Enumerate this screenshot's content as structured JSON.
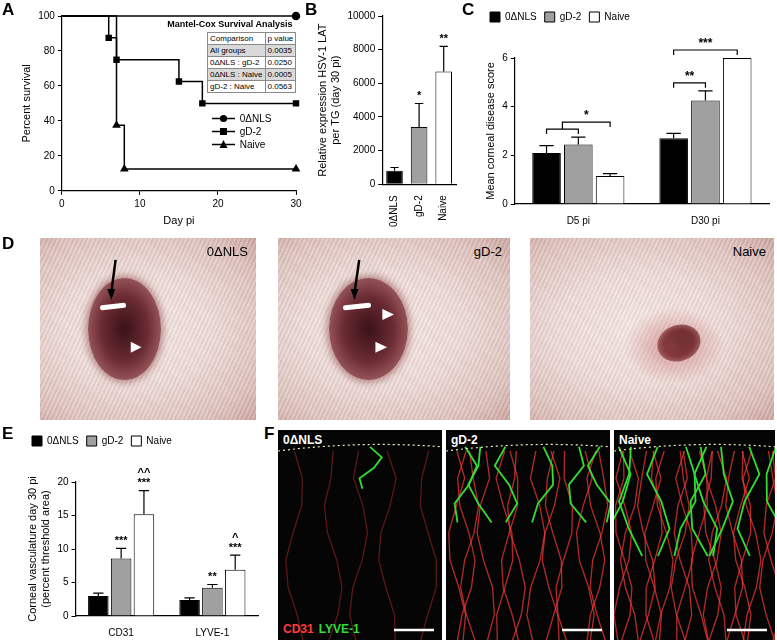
{
  "chart_data": [
    {
      "panel": "A",
      "type": "line",
      "line_style": "step",
      "grid": false,
      "legend": "right",
      "x_label": "Day pi",
      "y_label": "Percent survival",
      "xlim": [
        0,
        30
      ],
      "xticks": [
        0,
        10,
        20,
        30
      ],
      "ylim": [
        0,
        100
      ],
      "yticks": [
        0,
        20,
        40,
        60,
        80,
        100
      ],
      "series": [
        {
          "name": "0ΔNLS",
          "color": "#000000",
          "marker": "circle",
          "x": [
            0,
            30
          ],
          "values": [
            100,
            100
          ]
        },
        {
          "name": "gD-2",
          "color": "#000000",
          "marker": "square",
          "x": [
            0,
            6,
            7,
            15,
            18,
            30
          ],
          "values": [
            100,
            87.5,
            75,
            62.5,
            50,
            50
          ]
        },
        {
          "name": "Naive",
          "color": "#000000",
          "marker": "triangle",
          "x": [
            0,
            7,
            8,
            30
          ],
          "values": [
            100,
            37.5,
            12.5,
            12.5
          ]
        }
      ],
      "table": {
        "title": "Mantel-Cox Survival Analysis",
        "columns": [
          "Comparison",
          "p value"
        ],
        "rows": [
          [
            "All groups",
            "0.0035"
          ],
          [
            "0ΔNLS : gD-2",
            "0.0250"
          ],
          [
            "0ΔNLS : Naive",
            "0.0005"
          ],
          [
            "gD-2 : Naive",
            "0.0563"
          ]
        ]
      }
    },
    {
      "panel": "B",
      "type": "bar",
      "grid": false,
      "categories": [
        "0ΔNLS",
        "gD-2",
        "Naive"
      ],
      "values": [
        800,
        3400,
        6700
      ],
      "errors": [
        200,
        1400,
        1500
      ],
      "colors": [
        "#000000",
        "#a0a0a0",
        "#ffffff"
      ],
      "y_label": [
        "Relative expression HSV-1 LAT",
        "per TG (day 30 pi)"
      ],
      "ylim": [
        0,
        10000
      ],
      "yticks": [
        0,
        2000,
        4000,
        6000,
        8000,
        10000
      ],
      "significance": [
        null,
        [
          "*"
        ],
        [
          "**"
        ]
      ]
    },
    {
      "panel": "C",
      "type": "bar",
      "grid": false,
      "legend": "upper left",
      "categories": [
        "D5 pi",
        "D30 pi"
      ],
      "y_label": "Mean corneal disease score",
      "ylim": [
        0,
        6
      ],
      "yticks": [
        0,
        2,
        4,
        6
      ],
      "series": [
        {
          "name": "0ΔNLS",
          "color": "#000000",
          "values": [
            2.1,
            2.7
          ],
          "errors": [
            0.3,
            0.2
          ]
        },
        {
          "name": "gD-2",
          "color": "#a0a0a0",
          "values": [
            2.45,
            4.25
          ],
          "errors": [
            0.3,
            0.4
          ]
        },
        {
          "name": "Naive",
          "color": "#ffffff",
          "values": [
            1.15,
            6
          ],
          "errors": [
            0.1,
            0
          ]
        }
      ],
      "brackets": [
        {
          "category": "D5 pi",
          "from": [
            "0ΔNLS",
            "gD-2"
          ],
          "to": "Naive",
          "text": "*"
        },
        {
          "category": "D30 pi",
          "from": [
            "0ΔNLS"
          ],
          "to": "gD-2",
          "text": "**"
        },
        {
          "category": "D30 pi",
          "from": [
            "0ΔNLS"
          ],
          "to": "Naive",
          "text": "***"
        }
      ]
    },
    {
      "panel": "E",
      "type": "bar",
      "grid": false,
      "legend": "upper left",
      "categories": [
        "CD31",
        "LYVE-1"
      ],
      "y_label": [
        "Corneal vasculature day 30 pi",
        "(percent threshold area)"
      ],
      "ylim": [
        0,
        20
      ],
      "yticks": [
        0,
        5,
        10,
        15,
        20
      ],
      "series": [
        {
          "name": "0ΔNLS",
          "color": "#000000",
          "values": [
            3.0,
            2.4
          ],
          "errors": [
            0.4,
            0.3
          ]
        },
        {
          "name": "gD-2",
          "color": "#a0a0a0",
          "values": [
            8.6,
            4.2
          ],
          "errors": [
            1.5,
            0.5
          ],
          "significance": [
            [
              "***"
            ],
            [
              "**"
            ]
          ]
        },
        {
          "name": "Naive",
          "color": "#ffffff",
          "values": [
            15.2,
            6.9
          ],
          "errors": [
            3.5,
            2.2
          ],
          "significance": [
            [
              "^^",
              "***"
            ],
            [
              "^",
              "***"
            ]
          ]
        }
      ]
    }
  ],
  "images": [
    {
      "panel": "D",
      "labels": [
        "0ΔNLS",
        "gD-2",
        "Naive"
      ]
    },
    {
      "panel": "F",
      "labels": [
        "0ΔNLS",
        "gD-2",
        "Naive"
      ],
      "channels": [
        {
          "name": "CD31",
          "color": "#ff3a3a"
        },
        {
          "name": "LYVE-1",
          "color": "#33dd33"
        }
      ]
    }
  ]
}
